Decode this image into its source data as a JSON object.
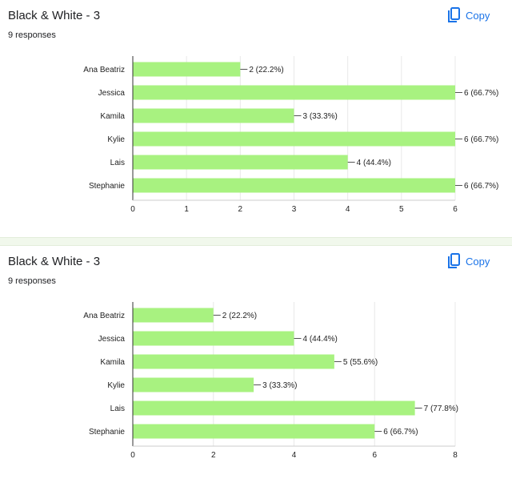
{
  "questions": [
    {
      "title": "Black & White - 3",
      "responses": "9 responses",
      "copy_label": "Copy"
    },
    {
      "title": "Black & White - 3",
      "responses": "9 responses",
      "copy_label": "Copy"
    }
  ],
  "colors": {
    "bar": "#a8f280",
    "accent": "#1a73e8",
    "grid": "#e8e8e8",
    "axis": "#333333"
  },
  "chart_data": [
    {
      "type": "bar",
      "orientation": "horizontal",
      "categories": [
        "Ana Beatriz",
        "Jessica",
        "Kamila",
        "Kylie",
        "Lais",
        "Stephanie"
      ],
      "values": [
        2,
        6,
        3,
        6,
        4,
        6
      ],
      "labels": [
        "2 (22.2%)",
        "6 (66.7%)",
        "3 (33.3%)",
        "6 (66.7%)",
        "4 (44.4%)",
        "6 (66.7%)"
      ],
      "xlim": [
        0,
        6
      ],
      "xticks": [
        0,
        1,
        2,
        3,
        4,
        5,
        6
      ],
      "title": "Black & White - 3",
      "xlabel": "",
      "ylabel": ""
    },
    {
      "type": "bar",
      "orientation": "horizontal",
      "categories": [
        "Ana Beatriz",
        "Jessica",
        "Kamila",
        "Kylie",
        "Lais",
        "Stephanie"
      ],
      "values": [
        2,
        4,
        5,
        3,
        7,
        6
      ],
      "labels": [
        "2 (22.2%)",
        "4 (44.4%)",
        "5 (55.6%)",
        "3 (33.3%)",
        "7 (77.8%)",
        "6 (66.7%)"
      ],
      "xlim": [
        0,
        8
      ],
      "xticks": [
        0,
        2,
        4,
        6,
        8
      ],
      "title": "Black & White - 3",
      "xlabel": "",
      "ylabel": ""
    }
  ]
}
